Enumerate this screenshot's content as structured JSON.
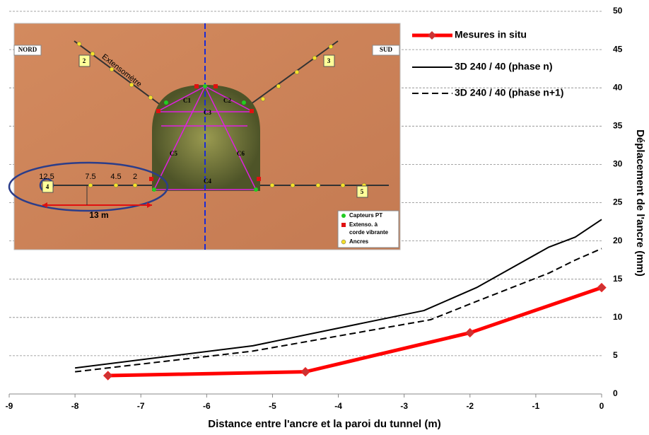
{
  "chart_data": {
    "type": "line",
    "x_label": "Distance entre l'ancre et la paroi du tunnel (m)",
    "y_label": "Déplacement de l'ancre (mm)",
    "xlim": [
      -9,
      0
    ],
    "xticks": [
      -9,
      -8,
      -7,
      -6,
      -5,
      -4,
      -3,
      -2,
      -1,
      0
    ],
    "ylim": [
      0,
      50
    ],
    "yticks": [
      0,
      5,
      10,
      15,
      20,
      25,
      30,
      35,
      40,
      45,
      50
    ],
    "grid": true,
    "y_axis_side": "right",
    "legend": "top-right",
    "series": [
      {
        "name": "Mesures in situ",
        "color": "#ff0000",
        "style": "solid",
        "width": 5,
        "marker": "diamond",
        "x": [
          -7.5,
          -4.5,
          -2,
          0
        ],
        "values": [
          2.4,
          2.9,
          8,
          13.9
        ]
      },
      {
        "name": "3D 240 / 40 (phase n)",
        "color": "#000000",
        "style": "solid",
        "width": 2,
        "x": [
          -8,
          -5.3,
          -2.7,
          -1.9,
          -0.8,
          -0.4,
          0
        ],
        "values": [
          3.4,
          6.3,
          10.9,
          13.9,
          19.2,
          20.5,
          22.8
        ]
      },
      {
        "name": "3D 240 / 40 (phase n+1)",
        "color": "#000000",
        "style": "dashed",
        "width": 2,
        "x": [
          -8,
          -5.3,
          -2.6,
          -1.9,
          -0.8,
          -0.4,
          0
        ],
        "values": [
          2.9,
          5.6,
          9.7,
          12.1,
          15.8,
          17.5,
          19
        ]
      }
    ]
  },
  "inset": {
    "north": "NORD",
    "south": "SUD",
    "extensometer": "Extensomètre",
    "boxes": [
      "2",
      "3",
      "4",
      "5"
    ],
    "cells": [
      "C1",
      "C2",
      "C3",
      "C4",
      "C5",
      "C6"
    ],
    "distances": [
      "12.5",
      "7.5",
      "4.5",
      "2"
    ],
    "span": "13 m",
    "legend": [
      "Capteurs PT",
      "Extenso. à",
      "corde vibrante",
      "Ancres"
    ]
  }
}
